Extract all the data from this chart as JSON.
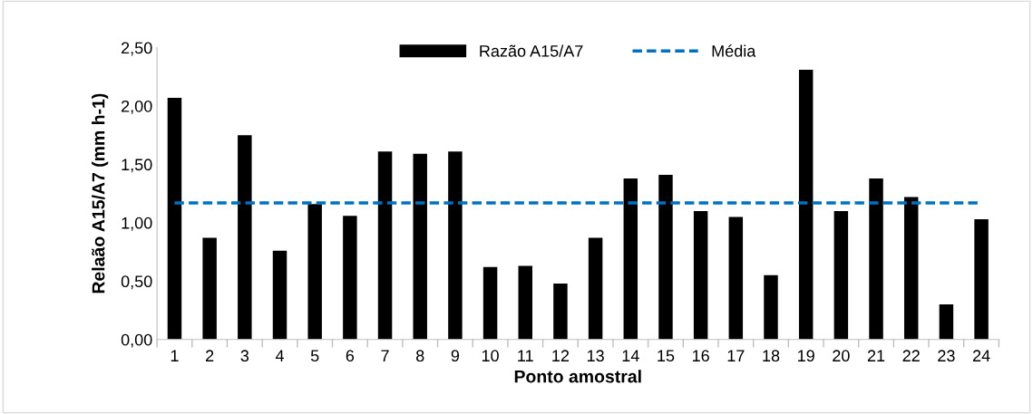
{
  "chart_data": {
    "type": "bar",
    "xlabel": "Ponto amostral",
    "ylabel": "Relaão A15/A7 (mm h-1)",
    "categories": [
      "1",
      "2",
      "3",
      "4",
      "5",
      "6",
      "7",
      "8",
      "9",
      "10",
      "11",
      "12",
      "13",
      "14",
      "15",
      "16",
      "17",
      "18",
      "19",
      "20",
      "21",
      "22",
      "23",
      "24"
    ],
    "series": [
      {
        "name": "Razão A15/A7",
        "color": "#000000",
        "values": [
          2.07,
          0.87,
          1.75,
          0.76,
          1.16,
          1.06,
          1.61,
          1.59,
          1.61,
          0.62,
          0.63,
          0.48,
          0.87,
          1.38,
          1.41,
          1.1,
          1.05,
          0.55,
          2.31,
          1.1,
          1.38,
          1.22,
          0.3,
          1.03
        ]
      }
    ],
    "ref_lines": [
      {
        "axis": "y",
        "value": 1.17,
        "label": "Média",
        "color": "#0070c0",
        "line_style": "dashed"
      }
    ],
    "ylim": [
      0,
      2.5
    ],
    "yticks": [
      {
        "value": 0,
        "label": "0,00"
      },
      {
        "value": 0.5,
        "label": "0,50"
      },
      {
        "value": 1,
        "label": "1,00"
      },
      {
        "value": 1.5,
        "label": "1,50"
      },
      {
        "value": 2,
        "label": "2,00"
      },
      {
        "value": 2.5,
        "label": "2,50"
      }
    ],
    "grid": false,
    "legend": "top"
  }
}
